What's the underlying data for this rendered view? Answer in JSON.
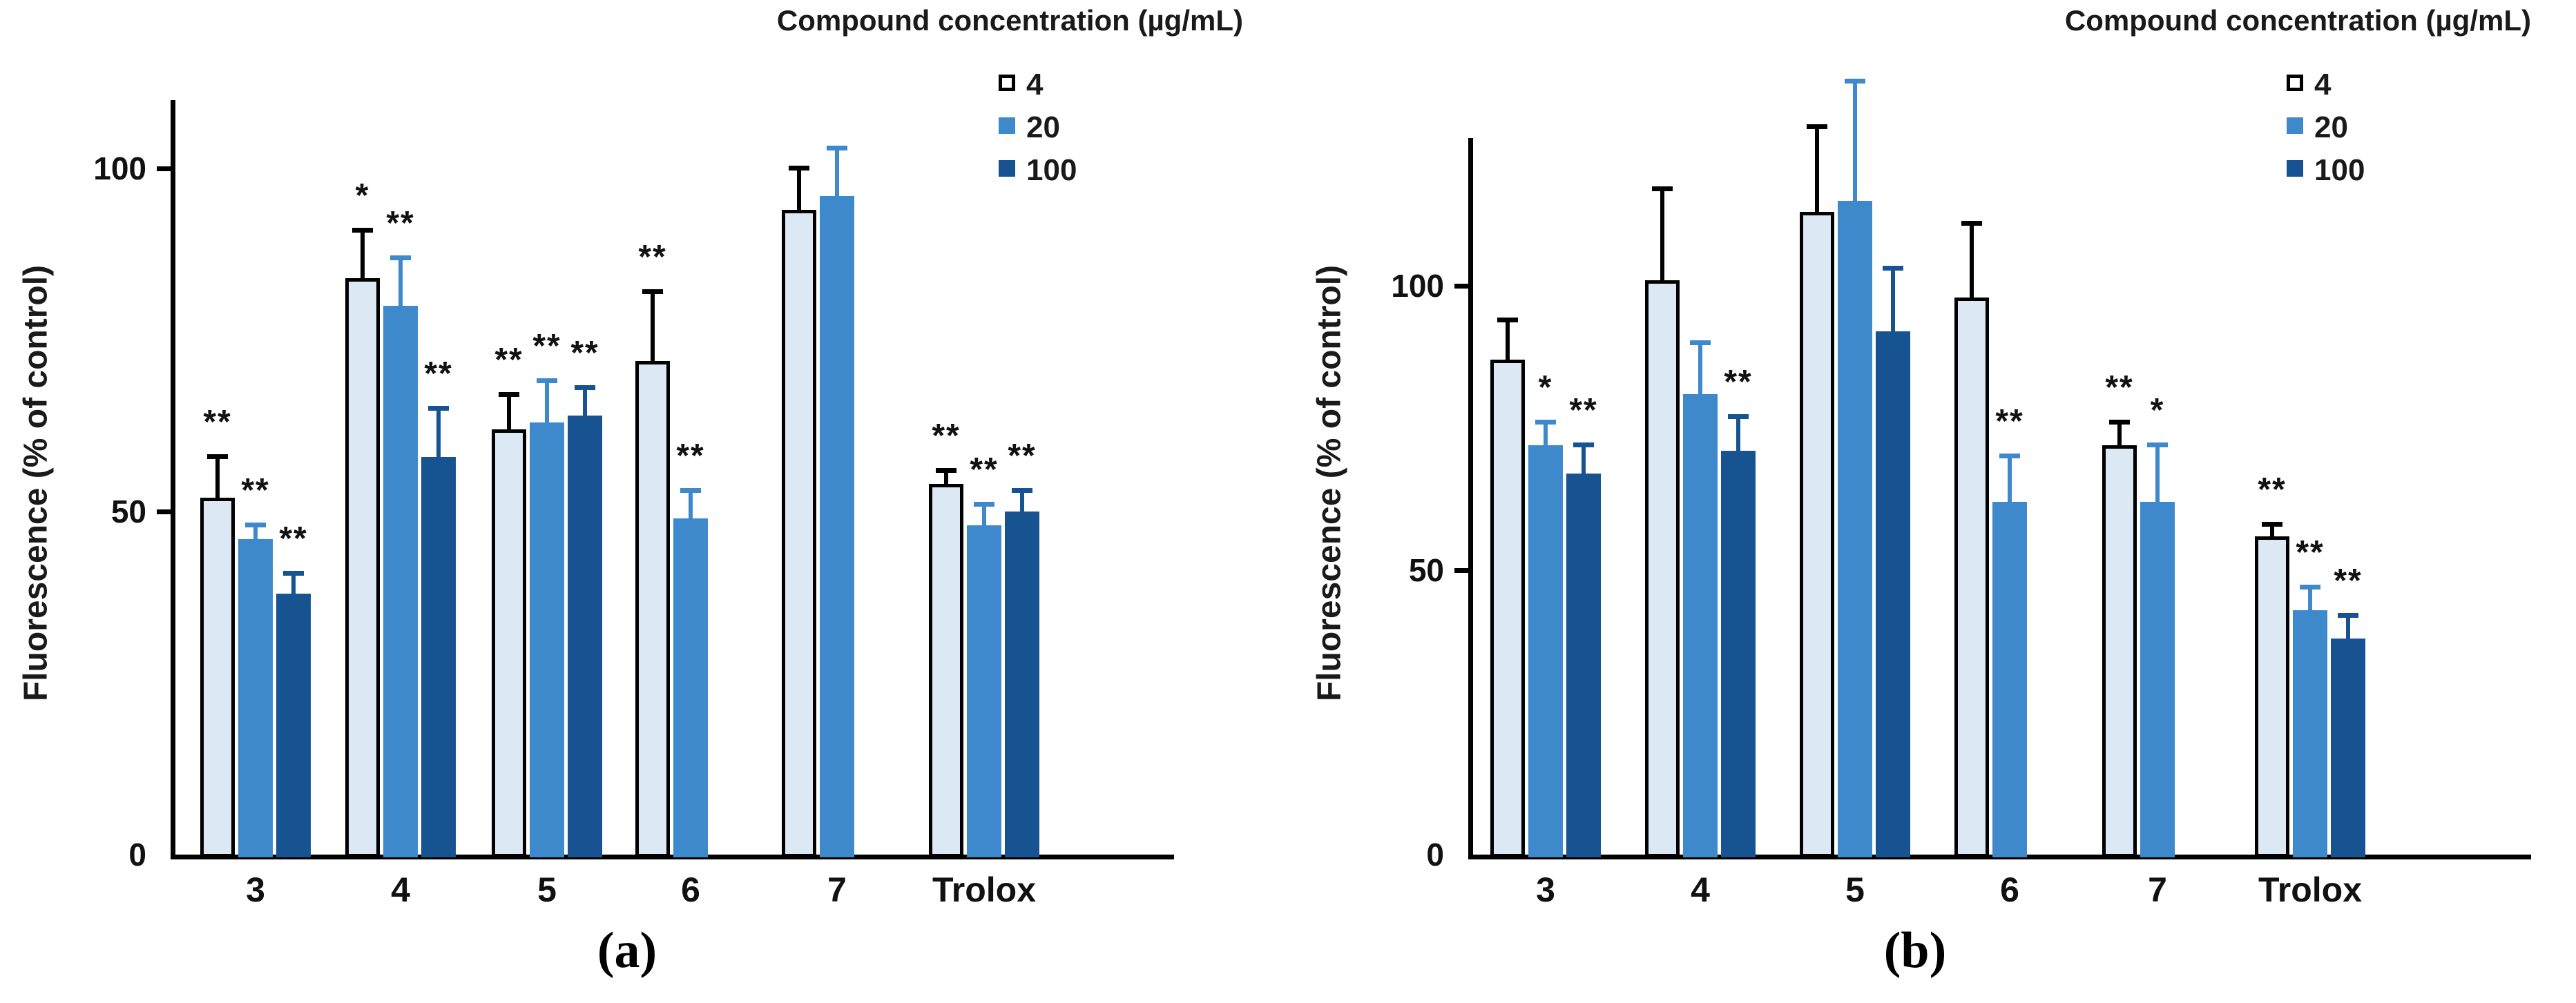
{
  "figure": {
    "y_axis_title": "Fluorescence (% of control)",
    "legend_title": "Compound concentration (µg/mL)",
    "legend": [
      {
        "label": "4",
        "swatch": "outline"
      },
      {
        "label": "20",
        "swatch": "mid"
      },
      {
        "label": "100",
        "swatch": "dark"
      }
    ],
    "colors": {
      "light_bar_fill": "#dce8f4",
      "mid_bar_fill": "#3e89cc",
      "dark_bar_fill": "#175390",
      "outline_black": "#000000",
      "text_black": "#111111"
    }
  },
  "chart_data": [
    {
      "id": "a",
      "type": "bar",
      "caption": "(a)",
      "title": "Compound concentration (µg/mL)",
      "ylabel": "Fluorescence (% of control)",
      "xlabel": "",
      "categories": [
        "3",
        "4",
        "5",
        "6",
        "7",
        "Trolox"
      ],
      "yticks": [
        0,
        50,
        100
      ],
      "ylim": [
        0,
        110
      ],
      "grid": false,
      "legend_position": "top-right",
      "series": [
        {
          "name": "4",
          "values": [
            52,
            84,
            62,
            72,
            94,
            54
          ],
          "errors": [
            6,
            7,
            5,
            10,
            6,
            2
          ],
          "sig": [
            "**",
            "*",
            "**",
            "**",
            "",
            "**"
          ]
        },
        {
          "name": "20",
          "values": [
            46,
            80,
            63,
            49,
            96,
            48
          ],
          "errors": [
            2,
            7,
            6,
            4,
            7,
            3
          ],
          "sig": [
            "**",
            "**",
            "**",
            "**",
            "",
            "**"
          ]
        },
        {
          "name": "100",
          "values": [
            38,
            58,
            64,
            null,
            null,
            50
          ],
          "errors": [
            3,
            7,
            4,
            null,
            null,
            3
          ],
          "sig": [
            "**",
            "**",
            "**",
            "",
            "",
            "**"
          ]
        }
      ]
    },
    {
      "id": "b",
      "type": "bar",
      "caption": "(b)",
      "title": "Compound concentration (µg/mL)",
      "ylabel": "Fluorescence (% of control)",
      "xlabel": "",
      "categories": [
        "3",
        "4",
        "5",
        "6",
        "7",
        "Trolox"
      ],
      "yticks": [
        0,
        50,
        100
      ],
      "ylim": [
        0,
        126
      ],
      "grid": false,
      "legend_position": "top-right",
      "series": [
        {
          "name": "4",
          "values": [
            87,
            101,
            113,
            98,
            72,
            56
          ],
          "errors": [
            7,
            16,
            15,
            13,
            4,
            2
          ],
          "sig": [
            "",
            "",
            "",
            "",
            "**",
            "**"
          ]
        },
        {
          "name": "20",
          "values": [
            72,
            81,
            115,
            62,
            62,
            43
          ],
          "errors": [
            4,
            9,
            21,
            8,
            10,
            4
          ],
          "sig": [
            "*",
            "",
            "",
            "**",
            "*",
            "**"
          ]
        },
        {
          "name": "100",
          "values": [
            67,
            71,
            92,
            null,
            null,
            38
          ],
          "errors": [
            5,
            6,
            11,
            null,
            null,
            4
          ],
          "sig": [
            "**",
            "**",
            "",
            "",
            "",
            "**"
          ]
        }
      ]
    }
  ]
}
